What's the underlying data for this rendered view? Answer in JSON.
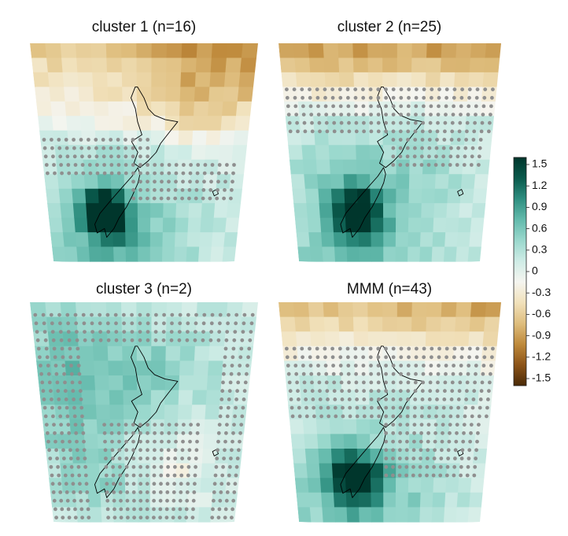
{
  "panels": [
    {
      "id": "c1",
      "title": "cluster 1 (n=16)",
      "pattern": "c1"
    },
    {
      "id": "c2",
      "title": "cluster 2 (n=25)",
      "pattern": "c2"
    },
    {
      "id": "c3",
      "title": "cluster 3 (n=2)",
      "pattern": "c3"
    },
    {
      "id": "mmm",
      "title": "MMM (n=43)",
      "pattern": "mmm"
    }
  ],
  "colorbar": {
    "ticks": [
      "1.5",
      "1.2",
      "0.9",
      "0.6",
      "0.3",
      "0",
      "-0.3",
      "-0.6",
      "-0.9",
      "-1.2",
      "-1.5"
    ],
    "range": [
      -1.5,
      1.5
    ],
    "colors": [
      "#4a2a08",
      "#8c5418",
      "#bf8a3c",
      "#dfbe7e",
      "#f1e1bb",
      "#f5f5f0",
      "#cfece6",
      "#9ad8cd",
      "#63baac",
      "#2e8f80",
      "#0a5a4c",
      "#00362c"
    ]
  },
  "map": {
    "land_outline_color": "#000000",
    "stipple_color": "#8f8f8f",
    "grid_cols": 15,
    "grid_rows": 15
  }
}
